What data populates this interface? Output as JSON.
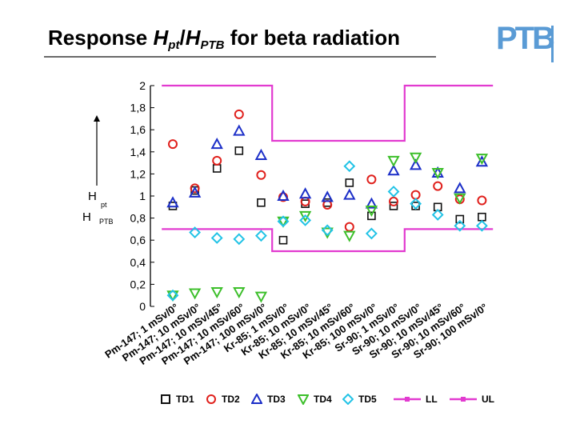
{
  "title": {
    "prefix": "Response ",
    "h1": "H",
    "sub1": "pt",
    "slash": "/",
    "h2": "H",
    "sub2": "PTB",
    "suffix": " for beta radiation"
  },
  "logo": {
    "text": "PTB"
  },
  "colors": {
    "TD1": "#111111",
    "TD2": "#e0201c",
    "TD3": "#1c2fc8",
    "TD4": "#3cbf2a",
    "TD5": "#22c3e6",
    "LL": "#e23bd0",
    "UL": "#e23bd0"
  },
  "chart_data": {
    "type": "scatter",
    "title": "Response Hpt/HPTB for beta radiation",
    "ylabel": {
      "h1": "H",
      "sub1": "pt",
      "h2": "H",
      "sub2": "PTB"
    },
    "ylim": [
      0,
      2
    ],
    "yticks": [
      "0",
      "0,2",
      "0,4",
      "0,6",
      "0,8",
      "1",
      "1,2",
      "1,4",
      "1,6",
      "1,8",
      "2"
    ],
    "categories": [
      "Pm-147; 1 mSv/0°",
      "Pm-147; 10 mSv/0°",
      "Pm-147; 10 mSv/45°",
      "Pm-147; 10 mSv/60°",
      "Pm-147; 100 mSv/0°",
      "Kr-85; 1 mSv/0°",
      "Kr-85; 10 mSv/0°",
      "Kr-85; 10 mSv/45°",
      "Kr-85; 10 mSv/60°",
      "Kr-85; 100 mSv/0°",
      "Sr-90; 1 mSv/0°",
      "Sr-90; 10 mSv/0°",
      "Sr-90; 10 mSv/45°",
      "Sr-90; 10 mSv/60°",
      "Sr-90; 100 mSv/0°"
    ],
    "series": [
      {
        "name": "TD1",
        "marker": "square",
        "values": [
          0.91,
          1.05,
          1.25,
          1.41,
          0.94,
          0.6,
          0.93,
          0.94,
          1.12,
          0.82,
          0.91,
          0.91,
          0.9,
          0.79,
          0.81
        ]
      },
      {
        "name": "TD2",
        "marker": "circle",
        "values": [
          1.47,
          1.07,
          1.32,
          1.74,
          1.19,
          0.99,
          0.95,
          0.92,
          0.72,
          1.15,
          0.95,
          1.01,
          1.09,
          0.97,
          0.96
        ]
      },
      {
        "name": "TD3",
        "marker": "triangle-up",
        "values": [
          0.94,
          1.03,
          1.47,
          1.59,
          1.37,
          1.0,
          1.02,
          0.99,
          1.01,
          0.93,
          1.23,
          1.28,
          1.21,
          1.07,
          1.31
        ]
      },
      {
        "name": "TD4",
        "marker": "triangle-down",
        "values": [
          0.1,
          0.12,
          0.13,
          0.13,
          0.09,
          0.77,
          0.82,
          0.67,
          0.64,
          0.87,
          1.32,
          1.35,
          1.21,
          0.98,
          1.34
        ]
      },
      {
        "name": "TD5",
        "marker": "diamond",
        "values": [
          0.1,
          0.67,
          0.62,
          0.61,
          0.64,
          0.77,
          0.78,
          0.69,
          1.27,
          0.66,
          1.04,
          0.93,
          0.83,
          0.73,
          0.73
        ]
      }
    ],
    "limits": [
      {
        "name": "LL",
        "values": [
          0.7,
          0.7,
          0.7,
          0.7,
          0.7,
          0.5,
          0.5,
          0.5,
          0.5,
          0.5,
          0.5,
          0.7,
          0.7,
          0.7,
          0.7
        ]
      },
      {
        "name": "UL",
        "values": [
          2.0,
          2.0,
          2.0,
          2.0,
          2.0,
          1.5,
          1.5,
          1.5,
          1.5,
          1.5,
          1.5,
          2.0,
          2.0,
          2.0,
          2.0
        ]
      }
    ],
    "grid": false,
    "legend": "bottom"
  }
}
